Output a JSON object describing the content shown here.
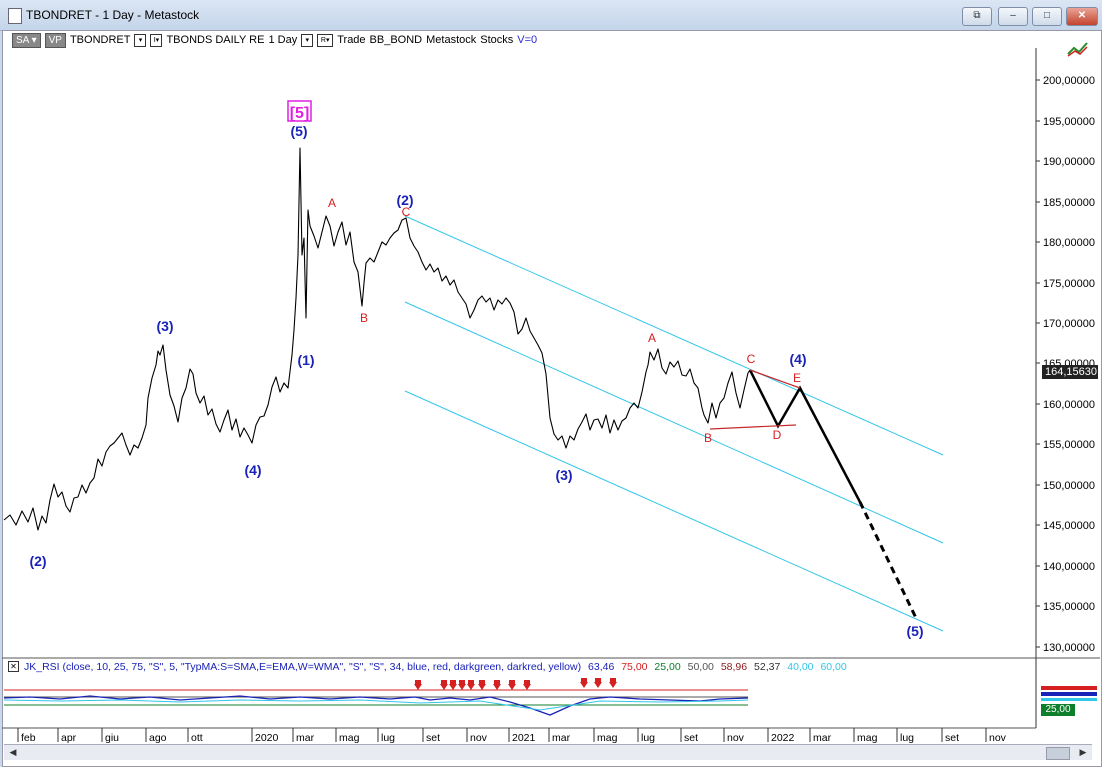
{
  "window": {
    "title": "TBONDRET - 1 Day - Metastock",
    "controls": {
      "restore": "⧉",
      "minimize": "–",
      "maximize": "□",
      "close": "✕"
    }
  },
  "toolbar": {
    "sa": "SA",
    "vp": "VP",
    "symbol": "TBONDRET",
    "series": "TBONDS DAILY RE",
    "period": "1 Day",
    "trade": "Trade",
    "account": "BB_BOND",
    "source": "Metastock",
    "type": "Stocks",
    "volume": "V=0"
  },
  "price_axis": {
    "labels": [
      "200,00000",
      "195,00000",
      "190,00000",
      "185,00000",
      "180,00000",
      "175,00000",
      "170,00000",
      "165,00000",
      "160,00000",
      "155,00000",
      "150,00000",
      "145,00000",
      "140,00000",
      "135,00000",
      "130,00000"
    ],
    "last_price": "164,15630"
  },
  "time_axis": {
    "labels": [
      "feb",
      "apr",
      "giu",
      "ago",
      "ott",
      "2020",
      "mar",
      "mag",
      "lug",
      "set",
      "nov",
      "2021",
      "mar",
      "mag",
      "lug",
      "set",
      "nov",
      "2022",
      "mar",
      "mag",
      "lug",
      "set",
      "nov"
    ]
  },
  "wave_labels": {
    "blue": [
      "(2)",
      "(3)",
      "(4)",
      "(1)",
      "(5)",
      "(2)",
      "(3)",
      "(4)",
      "(5)"
    ],
    "red": [
      "A",
      "B",
      "C",
      "A",
      "B",
      "C",
      "D",
      "E"
    ],
    "boxed": "[5]"
  },
  "indicator": {
    "text": "JK_RSI  (close,  10,  25,  75,  \"S\",  5,  \"TypMA:S=SMA,E=EMA,W=WMA\",  \"S\",  \"S\",  34,  blue,  red,  darkgreen,  darkred,  yellow)",
    "v1": "63,46",
    "v2": "75,00",
    "v3": "25,00",
    "v4": "50,00",
    "v5": "58,96",
    "v6": "52,37",
    "v7": "40,00",
    "v8": "60,00",
    "axis_tag": "25,00"
  },
  "colors": {
    "wave_blue": "#1a23b8",
    "wave_red": "#d42020",
    "channel": "#33c6e8",
    "price": "#000000",
    "last_price_bg": "#222222",
    "rsi_tag": "#0e7f2b"
  }
}
